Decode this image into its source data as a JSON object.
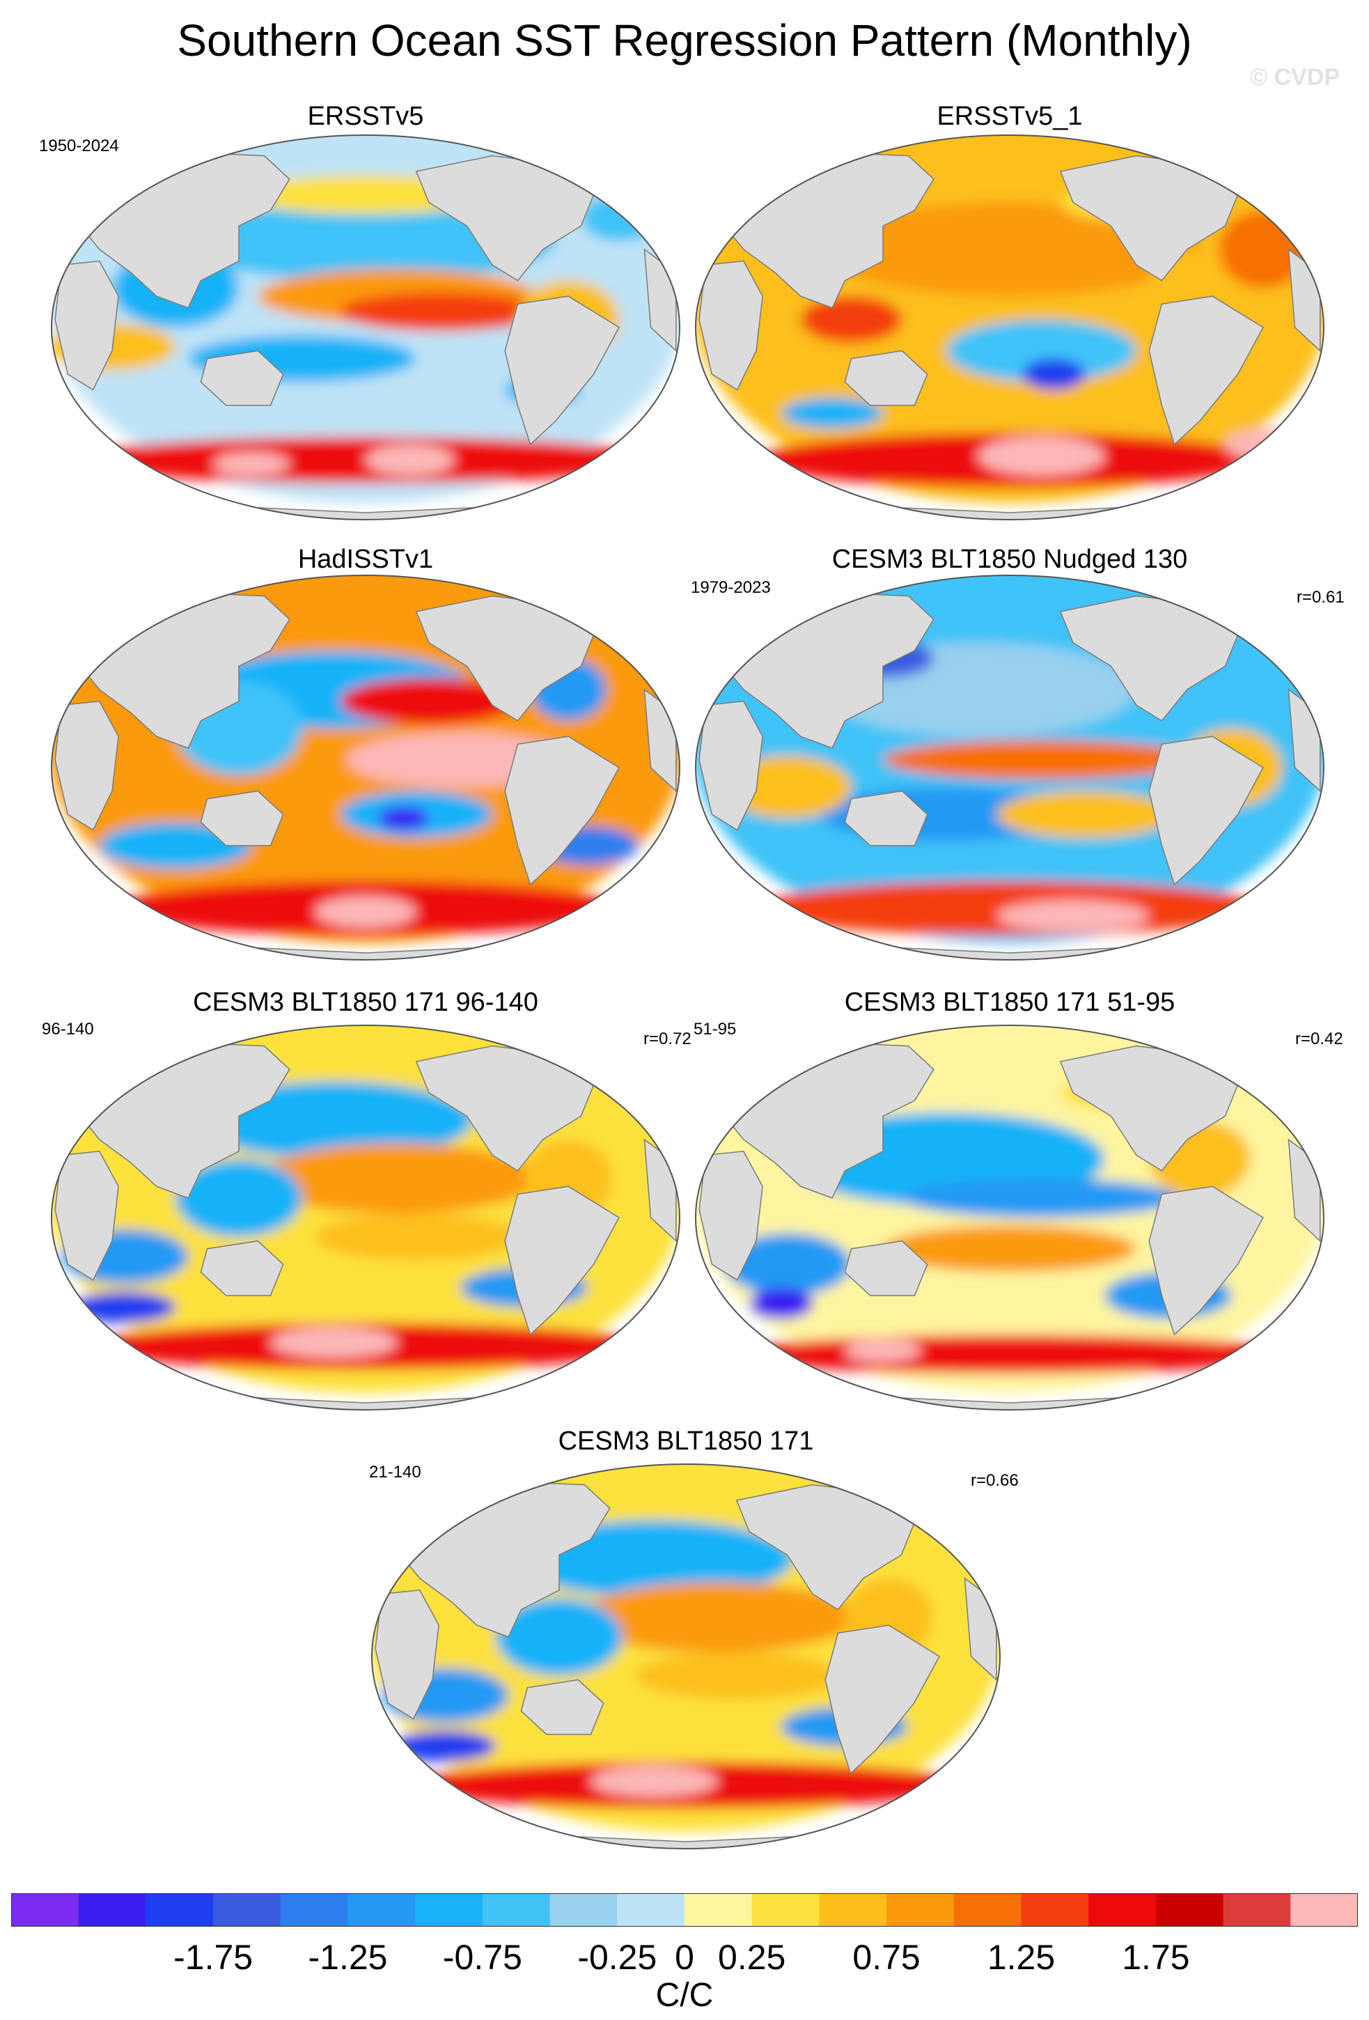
{
  "title": "Southern Ocean SST Regression Pattern (Monthly)",
  "watermark": "© CVDP",
  "panels": [
    {
      "name": "ERSSTv5",
      "title": "ERSSTv5",
      "period": "1950-2024",
      "r": "",
      "pattern": "obsA"
    },
    {
      "name": "ERSSTv5_1",
      "title": "ERSSTv5_1",
      "period": "",
      "r": "",
      "pattern": "obsB"
    },
    {
      "name": "HadISSTv1",
      "title": "HadISSTv1",
      "period": "",
      "r": "",
      "pattern": "had"
    },
    {
      "name": "nudged",
      "title": "CESM3 BLT1850 Nudged 130",
      "period": "1979-2023",
      "r": "r=0.61",
      "pattern": "modA"
    },
    {
      "name": "blt-96-140",
      "title": "CESM3 BLT1850 171 96-140",
      "period": "96-140",
      "r": "r=0.72",
      "pattern": "modB"
    },
    {
      "name": "blt-51-95",
      "title": "CESM3 BLT1850 171 51-95",
      "period": "51-95",
      "r": "r=0.42",
      "pattern": "modC"
    },
    {
      "name": "blt-21-140",
      "title": "CESM3 BLT1850 171",
      "period": "21-140",
      "r": "r=0.66",
      "pattern": "modB"
    }
  ],
  "colorbar": {
    "units": "C/C",
    "colors": [
      "#7b2cf0",
      "#3a1ef2",
      "#1e3cf0",
      "#3a5be0",
      "#2f7ef0",
      "#2499f4",
      "#19b2f8",
      "#41c3f8",
      "#98d0ee",
      "#bfe3f6",
      "#fff5a0",
      "#fde13e",
      "#fcbf1a",
      "#fb9a0a",
      "#f86f06",
      "#f43d10",
      "#ee0a0a",
      "#cc0000",
      "#dd3c3c",
      "#fdb8b8"
    ],
    "tick_labels": [
      "-1.75",
      "-1.25",
      "-0.75",
      "-0.25",
      "0",
      "0.25",
      "0.75",
      "1.25",
      "1.75"
    ],
    "tick_values": [
      -1.75,
      -1.25,
      -0.75,
      -0.25,
      0,
      0.25,
      0.75,
      1.25,
      1.75
    ]
  }
}
